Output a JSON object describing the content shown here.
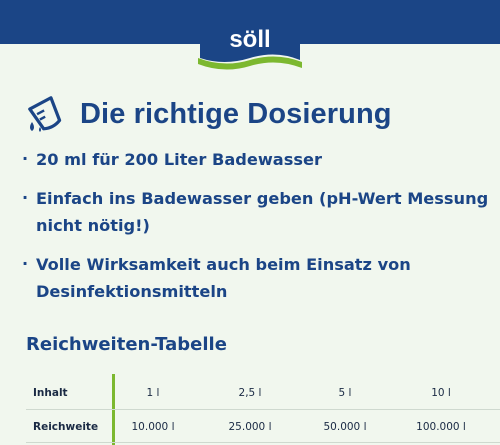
{
  "brand": {
    "logo_text": "söll",
    "colors": {
      "navy": "#1b4586",
      "green": "#7cb82f",
      "background": "#f1f7ee"
    }
  },
  "heading": {
    "icon": "dosing-cup-pour-icon",
    "title": "Die richtige Dosierung"
  },
  "bullets": [
    {
      "marker": "·",
      "text": "20 ml für 200 Liter Badewasser"
    },
    {
      "marker": "·",
      "text": "Einfach ins Badewasser geben (pH-Wert Messung nicht nötig!)"
    },
    {
      "marker": "·",
      "text": "Volle Wirksamkeit auch beim Einsatz von Desinfektionsmitteln"
    }
  ],
  "table": {
    "title": "Reichweiten-Tabelle",
    "rows": [
      {
        "label": "Inhalt",
        "cells": [
          "1 l",
          "2,5 l",
          "5 l",
          "10 l"
        ]
      },
      {
        "label": "Reichweite",
        "cells": [
          "10.000 l",
          "25.000 l",
          "50.000 l",
          "100.000 l"
        ]
      }
    ]
  }
}
